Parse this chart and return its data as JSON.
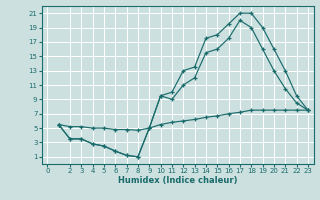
{
  "xlabel": "Humidex (Indice chaleur)",
  "bg_color": "#cce0e0",
  "grid_color": "#ffffff",
  "line_color": "#1a6b6b",
  "xlim": [
    -0.5,
    23.5
  ],
  "ylim": [
    0,
    22
  ],
  "xticks": [
    0,
    2,
    3,
    4,
    5,
    6,
    7,
    8,
    9,
    10,
    11,
    12,
    13,
    14,
    15,
    16,
    17,
    18,
    19,
    20,
    21,
    22,
    23
  ],
  "yticks": [
    1,
    3,
    5,
    7,
    9,
    11,
    13,
    15,
    17,
    19,
    21
  ],
  "line1_x": [
    1,
    2,
    3,
    4,
    5,
    6,
    7,
    8,
    9,
    10,
    11,
    12,
    13,
    14,
    15,
    16,
    17,
    18,
    19,
    20,
    21,
    22,
    23
  ],
  "line1_y": [
    5.5,
    3.5,
    3.5,
    2.8,
    2.5,
    1.8,
    1.2,
    1.0,
    5.0,
    9.5,
    10.0,
    13.0,
    13.5,
    17.5,
    18.0,
    19.5,
    21.0,
    21.0,
    19.0,
    16.0,
    13.0,
    9.5,
    7.5
  ],
  "line2_x": [
    1,
    2,
    3,
    4,
    5,
    6,
    7,
    8,
    9,
    10,
    11,
    12,
    13,
    14,
    15,
    16,
    17,
    18,
    19,
    20,
    21,
    22,
    23
  ],
  "line2_y": [
    5.5,
    3.5,
    3.5,
    2.8,
    2.5,
    1.8,
    1.2,
    1.0,
    5.0,
    9.5,
    9.0,
    11.0,
    12.0,
    15.5,
    16.0,
    17.5,
    20.0,
    19.0,
    16.0,
    13.0,
    10.5,
    8.5,
    7.5
  ],
  "line3_x": [
    1,
    2,
    3,
    4,
    5,
    6,
    7,
    8,
    9,
    10,
    11,
    12,
    13,
    14,
    15,
    16,
    17,
    18,
    19,
    20,
    21,
    22,
    23
  ],
  "line3_y": [
    5.5,
    5.2,
    5.2,
    5.0,
    5.0,
    4.8,
    4.8,
    4.7,
    5.0,
    5.5,
    5.8,
    6.0,
    6.2,
    6.5,
    6.7,
    7.0,
    7.2,
    7.5,
    7.5,
    7.5,
    7.5,
    7.5,
    7.5
  ]
}
